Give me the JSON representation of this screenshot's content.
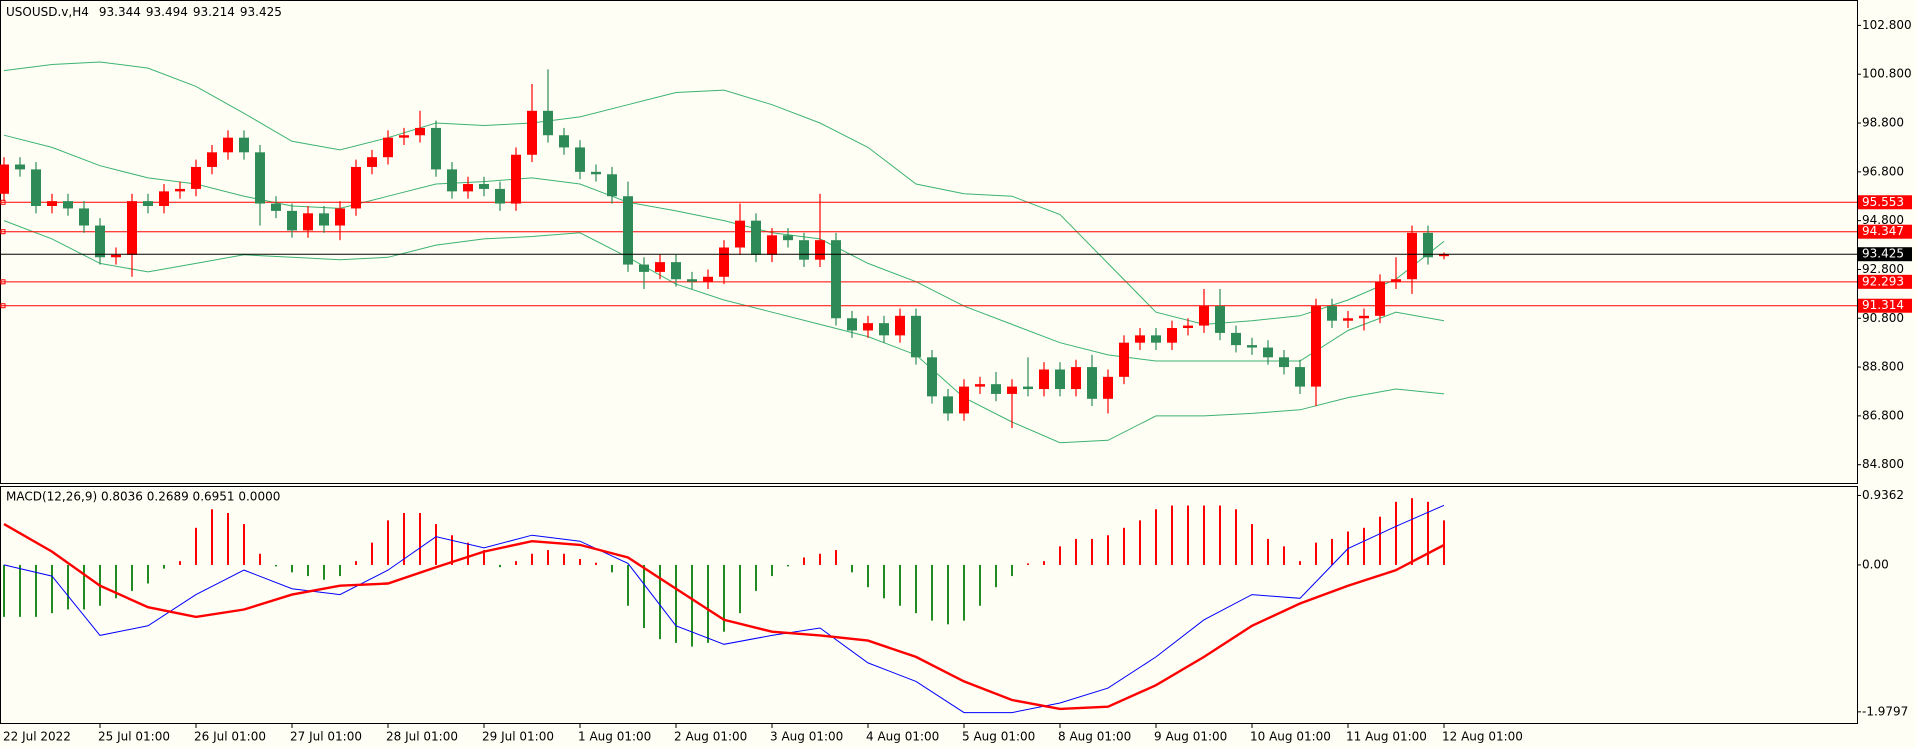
{
  "chart_data": [
    {
      "type": "candlestick",
      "title": "USOUSD.v,H4",
      "categories": [
        "22 Jul 2022",
        null,
        null,
        null,
        null,
        null,
        "25 Jul 01:00",
        null,
        null,
        null,
        null,
        null,
        "26 Jul 01:00",
        null,
        null,
        null,
        null,
        null,
        "27 Jul 01:00",
        null,
        null,
        null,
        null,
        null,
        "28 Jul 01:00",
        null,
        null,
        null,
        null,
        null,
        "29 Jul 01:00",
        null,
        null,
        null,
        null,
        null,
        "1 Aug 01:00",
        null,
        null,
        null,
        null,
        null,
        "2 Aug 01:00",
        null,
        null,
        null,
        null,
        null,
        "3 Aug 01:00",
        null,
        null,
        null,
        null,
        null,
        "4 Aug 01:00",
        null,
        null,
        null,
        null,
        null,
        "5 Aug 01:00",
        null,
        null,
        null,
        null,
        null,
        "8 Aug 01:00",
        null,
        null,
        null,
        null,
        null,
        "9 Aug 01:00",
        null,
        null,
        null,
        null,
        null,
        "10 Aug 01:00",
        null,
        null,
        null,
        null,
        null,
        "11 Aug 01:00",
        null,
        null,
        null,
        null,
        null,
        "12 Aug 01:00"
      ],
      "open": [
        95.9,
        97.1,
        96.9,
        95.4,
        95.6,
        95.3,
        94.6,
        93.3,
        93.4,
        95.6,
        95.4,
        96.0,
        96.1,
        97.0,
        97.6,
        98.2,
        97.6,
        95.5,
        95.2,
        94.4,
        95.1,
        94.6,
        95.3,
        97.0,
        97.4,
        98.2,
        98.3,
        98.6,
        96.9,
        96.0,
        96.3,
        96.1,
        95.5,
        97.5,
        99.3,
        98.3,
        97.8,
        96.8,
        96.7,
        95.8,
        93.0,
        92.7,
        93.1,
        92.4,
        92.3,
        92.5,
        93.7,
        94.8,
        93.4,
        94.2,
        94.0,
        93.2,
        94.0,
        90.8,
        90.3,
        90.6,
        90.1,
        90.9,
        89.2,
        87.6,
        86.9,
        88.0,
        88.1,
        87.7,
        88.0,
        87.9,
        88.7,
        87.9,
        88.8,
        87.5,
        88.4,
        89.8,
        90.1,
        89.8,
        90.4,
        90.5,
        91.3,
        90.2,
        89.7,
        89.6,
        89.2,
        88.8,
        88.0,
        91.3,
        90.7,
        90.8,
        90.9,
        92.3,
        92.4,
        94.3,
        93.344
      ],
      "high": [
        97.4,
        97.4,
        97.2,
        95.9,
        95.9,
        95.6,
        94.9,
        93.7,
        95.9,
        95.9,
        96.3,
        96.4,
        97.3,
        97.9,
        98.5,
        98.5,
        97.9,
        95.8,
        95.5,
        95.4,
        95.4,
        95.6,
        97.3,
        97.7,
        98.5,
        98.6,
        99.3,
        98.9,
        97.2,
        96.6,
        96.6,
        96.4,
        97.8,
        100.4,
        101.0,
        98.6,
        98.1,
        97.1,
        97.0,
        96.4,
        93.3,
        93.4,
        93.4,
        92.7,
        92.8,
        94.0,
        95.5,
        95.1,
        94.5,
        94.5,
        94.3,
        95.9,
        94.3,
        91.1,
        90.9,
        90.9,
        91.2,
        91.2,
        89.5,
        87.9,
        88.3,
        88.4,
        88.6,
        88.3,
        89.2,
        89.0,
        89.0,
        89.1,
        89.3,
        88.7,
        90.1,
        90.4,
        90.4,
        90.7,
        90.8,
        92.0,
        92.0,
        90.5,
        90.0,
        89.9,
        89.5,
        89.1,
        91.6,
        91.6,
        91.1,
        91.2,
        92.6,
        93.3,
        94.6,
        94.6,
        93.494
      ],
      "low": [
        95.6,
        96.6,
        95.1,
        95.1,
        95.0,
        94.3,
        93.0,
        93.0,
        92.5,
        95.1,
        95.1,
        95.7,
        95.8,
        96.7,
        97.3,
        97.3,
        94.6,
        94.9,
        94.1,
        94.1,
        94.3,
        94.0,
        95.0,
        96.7,
        97.1,
        97.9,
        98.0,
        96.6,
        95.7,
        95.7,
        95.8,
        95.2,
        95.2,
        97.2,
        98.0,
        97.5,
        96.5,
        96.4,
        95.5,
        92.7,
        92.0,
        92.4,
        92.1,
        92.0,
        92.0,
        92.2,
        93.4,
        93.1,
        93.1,
        93.7,
        92.9,
        92.9,
        90.5,
        90.0,
        90.0,
        89.8,
        89.8,
        88.9,
        87.3,
        86.6,
        86.6,
        87.7,
        87.4,
        86.3,
        87.6,
        87.6,
        87.6,
        87.6,
        87.2,
        86.9,
        88.1,
        89.5,
        89.5,
        89.5,
        90.1,
        90.2,
        89.9,
        89.4,
        89.3,
        88.9,
        88.5,
        87.7,
        87.2,
        90.4,
        90.4,
        90.3,
        90.6,
        92.0,
        91.8,
        93.0,
        93.214
      ],
      "close": [
        97.1,
        96.9,
        95.4,
        95.6,
        95.3,
        94.6,
        93.3,
        93.4,
        95.6,
        95.4,
        96.0,
        96.1,
        97.0,
        97.6,
        98.2,
        97.6,
        95.5,
        95.2,
        94.4,
        95.1,
        94.6,
        95.3,
        97.0,
        97.4,
        98.2,
        98.3,
        98.6,
        96.9,
        96.0,
        96.3,
        96.1,
        95.5,
        97.5,
        99.3,
        98.3,
        97.8,
        96.8,
        96.7,
        95.8,
        93.0,
        92.7,
        93.1,
        92.4,
        92.3,
        92.5,
        93.7,
        94.8,
        93.4,
        94.2,
        94.0,
        93.2,
        94.0,
        90.8,
        90.3,
        90.6,
        90.1,
        90.9,
        89.2,
        87.6,
        86.9,
        88.0,
        88.1,
        87.7,
        88.0,
        87.9,
        88.7,
        87.9,
        88.8,
        87.5,
        88.4,
        89.8,
        90.1,
        89.8,
        90.4,
        90.5,
        91.3,
        90.2,
        89.7,
        89.6,
        89.2,
        88.8,
        88.0,
        91.3,
        90.7,
        90.8,
        90.9,
        92.3,
        92.4,
        94.3,
        93.3,
        93.425
      ],
      "up_color": "#ff0000",
      "down_color": "#2e8b57",
      "bands": {
        "x": [
          0,
          3,
          6,
          9,
          12,
          15,
          18,
          21,
          24,
          27,
          30,
          33,
          36,
          39,
          42,
          45,
          48,
          51,
          54,
          57,
          60,
          63,
          66,
          69,
          72,
          75,
          78,
          81,
          84,
          87,
          90
        ],
        "series": [
          {
            "color": "#3cb371",
            "values": [
              100.95,
              101.2,
              101.3,
              101.05,
              100.3,
              99.2,
              98.05,
              97.7,
              98.2,
              98.8,
              98.7,
              98.8,
              99.05,
              99.55,
              100.05,
              100.15,
              99.55,
              98.8,
              97.8,
              96.3,
              95.9,
              95.8,
              95.05,
              93.05,
              91.05,
              90.55,
              90.7,
              90.9,
              91.55,
              92.4,
              93.95
            ]
          },
          {
            "color": "#3cb371",
            "values": [
              98.3,
              97.8,
              97.05,
              96.55,
              96.3,
              95.8,
              95.4,
              95.3,
              95.8,
              96.3,
              96.4,
              96.55,
              96.3,
              95.55,
              95.2,
              94.8,
              94.3,
              94.05,
              93.05,
              92.3,
              91.3,
              90.55,
              89.8,
              89.3,
              89.05,
              89.05,
              89.05,
              89.05,
              90.3,
              91.05,
              90.7
            ]
          },
          {
            "color": "#3cb371",
            "values": [
              94.8,
              94.05,
              93.05,
              92.7,
              93.05,
              93.4,
              93.3,
              93.2,
              93.3,
              93.8,
              94.05,
              94.15,
              94.3,
              93.3,
              92.2,
              91.55,
              91.05,
              90.55,
              90.05,
              89.3,
              87.55,
              86.55,
              85.7,
              85.8,
              86.8,
              86.8,
              86.9,
              87.05,
              87.55,
              87.9,
              87.7
            ]
          }
        ]
      },
      "levels": [
        {
          "value": 95.553,
          "color": "#ff0000"
        },
        {
          "value": 94.347,
          "color": "#ff0000"
        },
        {
          "value": 92.293,
          "color": "#ff0000"
        },
        {
          "value": 91.314,
          "color": "#ff0000"
        }
      ],
      "current_color": "#000000",
      "ylim": [
        84.05,
        103.8
      ],
      "yticks": [
        {
          "value": 84.8,
          "label": "84.800"
        },
        {
          "value": 86.8,
          "label": "86.800"
        },
        {
          "value": 88.8,
          "label": "88.800"
        },
        {
          "value": 90.8,
          "label": "90.800"
        },
        {
          "value": 92.8,
          "label": "92.800"
        },
        {
          "value": 94.8,
          "label": "94.800"
        },
        {
          "value": 96.8,
          "label": "96.800"
        },
        {
          "value": 98.8,
          "label": "98.800"
        },
        {
          "value": 100.8,
          "label": "100.800"
        },
        {
          "value": 102.8,
          "label": "102.800"
        }
      ]
    },
    {
      "type": "macd",
      "title": "MACD(12,26,9) 0.8036 0.2689 0.6951 0.0000",
      "histogram": [
        -0.7,
        -0.7,
        -0.7,
        -0.65,
        -0.6,
        -0.6,
        -0.55,
        -0.45,
        -0.35,
        -0.25,
        -0.05,
        0.05,
        0.5,
        0.75,
        0.7,
        0.55,
        0.15,
        -0.02,
        -0.1,
        -0.15,
        -0.2,
        -0.15,
        0.05,
        0.3,
        0.6,
        0.7,
        0.7,
        0.55,
        0.4,
        0.3,
        0.2,
        -0.03,
        0.05,
        0.15,
        0.2,
        0.15,
        0.08,
        0.03,
        -0.1,
        -0.55,
        -0.85,
        -1.0,
        -1.05,
        -1.1,
        -1.05,
        -0.9,
        -0.65,
        -0.35,
        -0.15,
        -0.02,
        0.1,
        0.15,
        0.2,
        -0.1,
        -0.3,
        -0.45,
        -0.55,
        -0.65,
        -0.75,
        -0.8,
        -0.75,
        -0.55,
        -0.3,
        -0.15,
        0.02,
        0.05,
        0.25,
        0.35,
        0.35,
        0.4,
        0.5,
        0.6,
        0.75,
        0.8,
        0.8,
        0.8,
        0.8,
        0.75,
        0.55,
        0.35,
        0.25,
        0.05,
        0.3,
        0.35,
        0.45,
        0.5,
        0.65,
        0.85,
        0.9,
        0.85,
        0.6
      ],
      "pos_color": "#ff0000",
      "neg_color": "#228b22",
      "x": [
        0,
        3,
        6,
        9,
        12,
        15,
        18,
        21,
        24,
        27,
        30,
        33,
        36,
        39,
        42,
        45,
        48,
        51,
        54,
        57,
        60,
        63,
        66,
        69,
        72,
        75,
        78,
        81,
        84,
        87,
        90
      ],
      "series": [
        {
          "color": "#0000ff",
          "values": [
            0.0,
            -0.15,
            -0.95,
            -0.82,
            -0.4,
            -0.07,
            -0.32,
            -0.4,
            -0.07,
            0.38,
            0.23,
            0.4,
            0.32,
            0.02,
            -0.82,
            -1.07,
            -0.95,
            -0.85,
            -1.32,
            -1.57,
            -1.99,
            -1.99,
            -1.86,
            -1.66,
            -1.24,
            -0.74,
            -0.4,
            -0.45,
            0.22,
            0.52,
            0.8036
          ]
        },
        {
          "color": "#ff0000",
          "values": [
            0.55,
            0.18,
            -0.28,
            -0.57,
            -0.7,
            -0.6,
            -0.4,
            -0.28,
            -0.25,
            -0.03,
            0.18,
            0.32,
            0.27,
            0.1,
            -0.32,
            -0.74,
            -0.9,
            -0.95,
            -1.02,
            -1.24,
            -1.57,
            -1.82,
            -1.94,
            -1.91,
            -1.62,
            -1.24,
            -0.82,
            -0.52,
            -0.28,
            -0.07,
            0.2689
          ]
        }
      ],
      "ylim": [
        -2.13,
        1.05
      ],
      "yticks": [
        -1.9797,
        {
          "value": 0,
          "label": "0.00"
        },
        0.9362
      ]
    }
  ]
}
